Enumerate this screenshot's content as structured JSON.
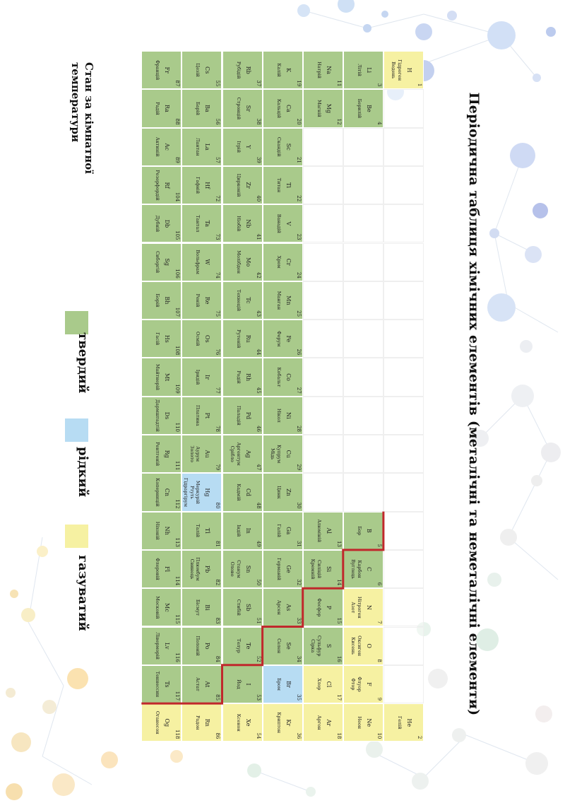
{
  "title": "Періодична таблиця хімічних елементів (металічні та неметалічні елементи)",
  "legend": {
    "title": "Стан за кімнатної температури",
    "solid": "твердий",
    "liquid": "рідкий",
    "gas": "газуватий"
  },
  "colors": {
    "solid": "#a9ca8b",
    "liquid": "#b7dcf3",
    "gas": "#f6f1a2",
    "divider": "#c0282c"
  },
  "elements": [
    {
      "z": 1,
      "sym": "H",
      "names": [
        "Гідроген",
        "Водень"
      ],
      "period": 1,
      "group": 1,
      "state": "gas"
    },
    {
      "z": 2,
      "sym": "He",
      "names": [
        "Гелій"
      ],
      "period": 1,
      "group": 18,
      "state": "gas"
    },
    {
      "z": 3,
      "sym": "Li",
      "names": [
        "Літій"
      ],
      "period": 2,
      "group": 1,
      "state": "solid"
    },
    {
      "z": 4,
      "sym": "Be",
      "names": [
        "Берилій"
      ],
      "period": 2,
      "group": 2,
      "state": "solid"
    },
    {
      "z": 5,
      "sym": "B",
      "names": [
        "Бор"
      ],
      "period": 2,
      "group": 13,
      "state": "solid"
    },
    {
      "z": 6,
      "sym": "C",
      "names": [
        "Карбон",
        "Вуглець"
      ],
      "period": 2,
      "group": 14,
      "state": "solid"
    },
    {
      "z": 7,
      "sym": "N",
      "names": [
        "Нітроген",
        "Азот"
      ],
      "period": 2,
      "group": 15,
      "state": "gas"
    },
    {
      "z": 8,
      "sym": "O",
      "names": [
        "Оксиген",
        "Кисень"
      ],
      "period": 2,
      "group": 16,
      "state": "gas"
    },
    {
      "z": 9,
      "sym": "F",
      "names": [
        "Флуор",
        "Фтор"
      ],
      "period": 2,
      "group": 17,
      "state": "gas"
    },
    {
      "z": 10,
      "sym": "Ne",
      "names": [
        "Неон"
      ],
      "period": 2,
      "group": 18,
      "state": "gas"
    },
    {
      "z": 11,
      "sym": "Na",
      "names": [
        "Натрій"
      ],
      "period": 3,
      "group": 1,
      "state": "solid"
    },
    {
      "z": 12,
      "sym": "Mg",
      "names": [
        "Магній"
      ],
      "period": 3,
      "group": 2,
      "state": "solid"
    },
    {
      "z": 13,
      "sym": "Al",
      "names": [
        "Алюміній"
      ],
      "period": 3,
      "group": 13,
      "state": "solid"
    },
    {
      "z": 14,
      "sym": "Si",
      "names": [
        "Силіцій",
        "Кремній"
      ],
      "period": 3,
      "group": 14,
      "state": "solid"
    },
    {
      "z": 15,
      "sym": "P",
      "names": [
        "Фосфор"
      ],
      "period": 3,
      "group": 15,
      "state": "solid"
    },
    {
      "z": 16,
      "sym": "S",
      "names": [
        "Сульфур",
        "Сірка"
      ],
      "period": 3,
      "group": 16,
      "state": "solid"
    },
    {
      "z": 17,
      "sym": "Cl",
      "names": [
        "Хлор"
      ],
      "period": 3,
      "group": 17,
      "state": "gas"
    },
    {
      "z": 18,
      "sym": "Ar",
      "names": [
        "Аргон"
      ],
      "period": 3,
      "group": 18,
      "state": "gas"
    },
    {
      "z": 19,
      "sym": "K",
      "names": [
        "Калій"
      ],
      "period": 4,
      "group": 1,
      "state": "solid"
    },
    {
      "z": 20,
      "sym": "Ca",
      "names": [
        "Кальцій"
      ],
      "period": 4,
      "group": 2,
      "state": "solid"
    },
    {
      "z": 21,
      "sym": "Sc",
      "names": [
        "Скандій"
      ],
      "period": 4,
      "group": 3,
      "state": "solid"
    },
    {
      "z": 22,
      "sym": "Ti",
      "names": [
        "Титан"
      ],
      "period": 4,
      "group": 4,
      "state": "solid"
    },
    {
      "z": 23,
      "sym": "V",
      "names": [
        "Ванадій"
      ],
      "period": 4,
      "group": 5,
      "state": "solid"
    },
    {
      "z": 24,
      "sym": "Cr",
      "names": [
        "Хром"
      ],
      "period": 4,
      "group": 6,
      "state": "solid"
    },
    {
      "z": 25,
      "sym": "Mn",
      "names": [
        "Манган"
      ],
      "period": 4,
      "group": 7,
      "state": "solid"
    },
    {
      "z": 26,
      "sym": "Fe",
      "names": [
        "Ферум"
      ],
      "period": 4,
      "group": 8,
      "state": "solid"
    },
    {
      "z": 27,
      "sym": "Co",
      "names": [
        "Кобальт"
      ],
      "period": 4,
      "group": 9,
      "state": "solid"
    },
    {
      "z": 28,
      "sym": "Ni",
      "names": [
        "Нікол"
      ],
      "period": 4,
      "group": 10,
      "state": "solid"
    },
    {
      "z": 29,
      "sym": "Cu",
      "names": [
        "Купрум",
        "Мідь"
      ],
      "period": 4,
      "group": 11,
      "state": "solid"
    },
    {
      "z": 30,
      "sym": "Zn",
      "names": [
        "Цинк"
      ],
      "period": 4,
      "group": 12,
      "state": "solid"
    },
    {
      "z": 31,
      "sym": "Ga",
      "names": [
        "Галій"
      ],
      "period": 4,
      "group": 13,
      "state": "solid"
    },
    {
      "z": 32,
      "sym": "Ge",
      "names": [
        "Германій"
      ],
      "period": 4,
      "group": 14,
      "state": "solid"
    },
    {
      "z": 33,
      "sym": "As",
      "names": [
        "Арсен"
      ],
      "period": 4,
      "group": 15,
      "state": "solid"
    },
    {
      "z": 34,
      "sym": "Se",
      "names": [
        "Селен"
      ],
      "period": 4,
      "group": 16,
      "state": "solid"
    },
    {
      "z": 35,
      "sym": "Br",
      "names": [
        "Бром"
      ],
      "period": 4,
      "group": 17,
      "state": "liquid"
    },
    {
      "z": 36,
      "sym": "Kr",
      "names": [
        "Криптон"
      ],
      "period": 4,
      "group": 18,
      "state": "gas"
    },
    {
      "z": 37,
      "sym": "Rb",
      "names": [
        "Рубідій"
      ],
      "period": 5,
      "group": 1,
      "state": "solid"
    },
    {
      "z": 38,
      "sym": "Sr",
      "names": [
        "Стронцій"
      ],
      "period": 5,
      "group": 2,
      "state": "solid"
    },
    {
      "z": 39,
      "sym": "Y",
      "names": [
        "Ітрій"
      ],
      "period": 5,
      "group": 3,
      "state": "solid"
    },
    {
      "z": 40,
      "sym": "Zr",
      "names": [
        "Цирконій"
      ],
      "period": 5,
      "group": 4,
      "state": "solid"
    },
    {
      "z": 41,
      "sym": "Nb",
      "names": [
        "Ніобій"
      ],
      "period": 5,
      "group": 5,
      "state": "solid"
    },
    {
      "z": 42,
      "sym": "Mo",
      "names": [
        "Молібден"
      ],
      "period": 5,
      "group": 6,
      "state": "solid"
    },
    {
      "z": 43,
      "sym": "Tc",
      "names": [
        "Технецій"
      ],
      "period": 5,
      "group": 7,
      "state": "solid"
    },
    {
      "z": 44,
      "sym": "Ru",
      "names": [
        "Рутеній"
      ],
      "period": 5,
      "group": 8,
      "state": "solid"
    },
    {
      "z": 45,
      "sym": "Rh",
      "names": [
        "Родій"
      ],
      "period": 5,
      "group": 9,
      "state": "solid"
    },
    {
      "z": 46,
      "sym": "Pd",
      "names": [
        "Паладій"
      ],
      "period": 5,
      "group": 10,
      "state": "solid"
    },
    {
      "z": 47,
      "sym": "Ag",
      "names": [
        "Аргентум",
        "Срібло"
      ],
      "period": 5,
      "group": 11,
      "state": "solid"
    },
    {
      "z": 48,
      "sym": "Cd",
      "names": [
        "Кадмій"
      ],
      "period": 5,
      "group": 12,
      "state": "solid"
    },
    {
      "z": 49,
      "sym": "In",
      "names": [
        "Індій"
      ],
      "period": 5,
      "group": 13,
      "state": "solid"
    },
    {
      "z": 50,
      "sym": "Sn",
      "names": [
        "Станум",
        "Олово"
      ],
      "period": 5,
      "group": 14,
      "state": "solid"
    },
    {
      "z": 51,
      "sym": "Sb",
      "names": [
        "Стибій"
      ],
      "period": 5,
      "group": 15,
      "state": "solid"
    },
    {
      "z": 52,
      "sym": "Te",
      "names": [
        "Телур"
      ],
      "period": 5,
      "group": 16,
      "state": "solid"
    },
    {
      "z": 53,
      "sym": "I",
      "names": [
        "Йод"
      ],
      "period": 5,
      "group": 17,
      "state": "solid"
    },
    {
      "z": 54,
      "sym": "Xe",
      "names": [
        "Ксенон"
      ],
      "period": 5,
      "group": 18,
      "state": "gas"
    },
    {
      "z": 55,
      "sym": "Cs",
      "names": [
        "Цезій"
      ],
      "period": 6,
      "group": 1,
      "state": "solid"
    },
    {
      "z": 56,
      "sym": "Ba",
      "names": [
        "Барій"
      ],
      "period": 6,
      "group": 2,
      "state": "solid"
    },
    {
      "z": 57,
      "sym": "La",
      "names": [
        "Лантан"
      ],
      "period": 6,
      "group": 3,
      "state": "solid"
    },
    {
      "z": 72,
      "sym": "Hf",
      "names": [
        "Гафній"
      ],
      "period": 6,
      "group": 4,
      "state": "solid"
    },
    {
      "z": 73,
      "sym": "Ta",
      "names": [
        "Тантал"
      ],
      "period": 6,
      "group": 5,
      "state": "solid"
    },
    {
      "z": 74,
      "sym": "W",
      "names": [
        "Вольфрам"
      ],
      "period": 6,
      "group": 6,
      "state": "solid"
    },
    {
      "z": 75,
      "sym": "Re",
      "names": [
        "Реній"
      ],
      "period": 6,
      "group": 7,
      "state": "solid"
    },
    {
      "z": 76,
      "sym": "Os",
      "names": [
        "Осмій"
      ],
      "period": 6,
      "group": 8,
      "state": "solid"
    },
    {
      "z": 77,
      "sym": "Ir",
      "names": [
        "Іридій"
      ],
      "period": 6,
      "group": 9,
      "state": "solid"
    },
    {
      "z": 78,
      "sym": "Pt",
      "names": [
        "Платина"
      ],
      "period": 6,
      "group": 10,
      "state": "solid"
    },
    {
      "z": 79,
      "sym": "Au",
      "names": [
        "Аурум",
        "Золото"
      ],
      "period": 6,
      "group": 11,
      "state": "solid"
    },
    {
      "z": 80,
      "sym": "Hg",
      "names": [
        "Меркурій",
        "Ртуть",
        "Гідраргірум"
      ],
      "period": 6,
      "group": 12,
      "state": "liquid"
    },
    {
      "z": 81,
      "sym": "Tl",
      "names": [
        "Талій"
      ],
      "period": 6,
      "group": 13,
      "state": "solid"
    },
    {
      "z": 82,
      "sym": "Pb",
      "names": [
        "Плюмбум",
        "Свинець"
      ],
      "period": 6,
      "group": 14,
      "state": "solid"
    },
    {
      "z": 83,
      "sym": "Bi",
      "names": [
        "Бісмут"
      ],
      "period": 6,
      "group": 15,
      "state": "solid"
    },
    {
      "z": 84,
      "sym": "Po",
      "names": [
        "Полоній"
      ],
      "period": 6,
      "group": 16,
      "state": "solid"
    },
    {
      "z": 85,
      "sym": "At",
      "names": [
        "Астат"
      ],
      "period": 6,
      "group": 17,
      "state": "solid"
    },
    {
      "z": 86,
      "sym": "Rn",
      "names": [
        "Радон"
      ],
      "period": 6,
      "group": 18,
      "state": "gas"
    },
    {
      "z": 87,
      "sym": "Fr",
      "names": [
        "Францій"
      ],
      "period": 7,
      "group": 1,
      "state": "solid"
    },
    {
      "z": 88,
      "sym": "Ra",
      "names": [
        "Радій"
      ],
      "period": 7,
      "group": 2,
      "state": "solid"
    },
    {
      "z": 89,
      "sym": "Ac",
      "names": [
        "Актиній"
      ],
      "period": 7,
      "group": 3,
      "state": "solid"
    },
    {
      "z": 104,
      "sym": "Rf",
      "names": [
        "Резерфордій"
      ],
      "period": 7,
      "group": 4,
      "state": "solid"
    },
    {
      "z": 105,
      "sym": "Db",
      "names": [
        "Дубній"
      ],
      "period": 7,
      "group": 5,
      "state": "solid"
    },
    {
      "z": 106,
      "sym": "Sg",
      "names": [
        "Сиборгій"
      ],
      "period": 7,
      "group": 6,
      "state": "solid"
    },
    {
      "z": 107,
      "sym": "Bh",
      "names": [
        "Борій"
      ],
      "period": 7,
      "group": 7,
      "state": "solid"
    },
    {
      "z": 108,
      "sym": "Hs",
      "names": [
        "Гасій"
      ],
      "period": 7,
      "group": 8,
      "state": "solid"
    },
    {
      "z": 109,
      "sym": "Mt",
      "names": [
        "Майтнерій"
      ],
      "period": 7,
      "group": 9,
      "state": "solid"
    },
    {
      "z": 110,
      "sym": "Ds",
      "names": [
        "Дармштадтій"
      ],
      "period": 7,
      "group": 10,
      "state": "solid"
    },
    {
      "z": 111,
      "sym": "Rg",
      "names": [
        "Рентгеній"
      ],
      "period": 7,
      "group": 11,
      "state": "solid"
    },
    {
      "z": 112,
      "sym": "Cn",
      "names": [
        "Коперницій"
      ],
      "period": 7,
      "group": 12,
      "state": "solid"
    },
    {
      "z": 113,
      "sym": "Nh",
      "names": [
        "Ніхоній"
      ],
      "period": 7,
      "group": 13,
      "state": "solid"
    },
    {
      "z": 114,
      "sym": "Fl",
      "names": [
        "Флеровій"
      ],
      "period": 7,
      "group": 14,
      "state": "solid"
    },
    {
      "z": 115,
      "sym": "Mc",
      "names": [
        "Московій"
      ],
      "period": 7,
      "group": 15,
      "state": "solid"
    },
    {
      "z": 116,
      "sym": "Lv",
      "names": [
        "Ліверморій"
      ],
      "period": 7,
      "group": 16,
      "state": "solid"
    },
    {
      "z": 117,
      "sym": "Ts",
      "names": [
        "Теннессин"
      ],
      "period": 7,
      "group": 17,
      "state": "solid"
    },
    {
      "z": 118,
      "sym": "Og",
      "names": [
        "Оганесон"
      ],
      "period": 7,
      "group": 18,
      "state": "gas"
    }
  ]
}
